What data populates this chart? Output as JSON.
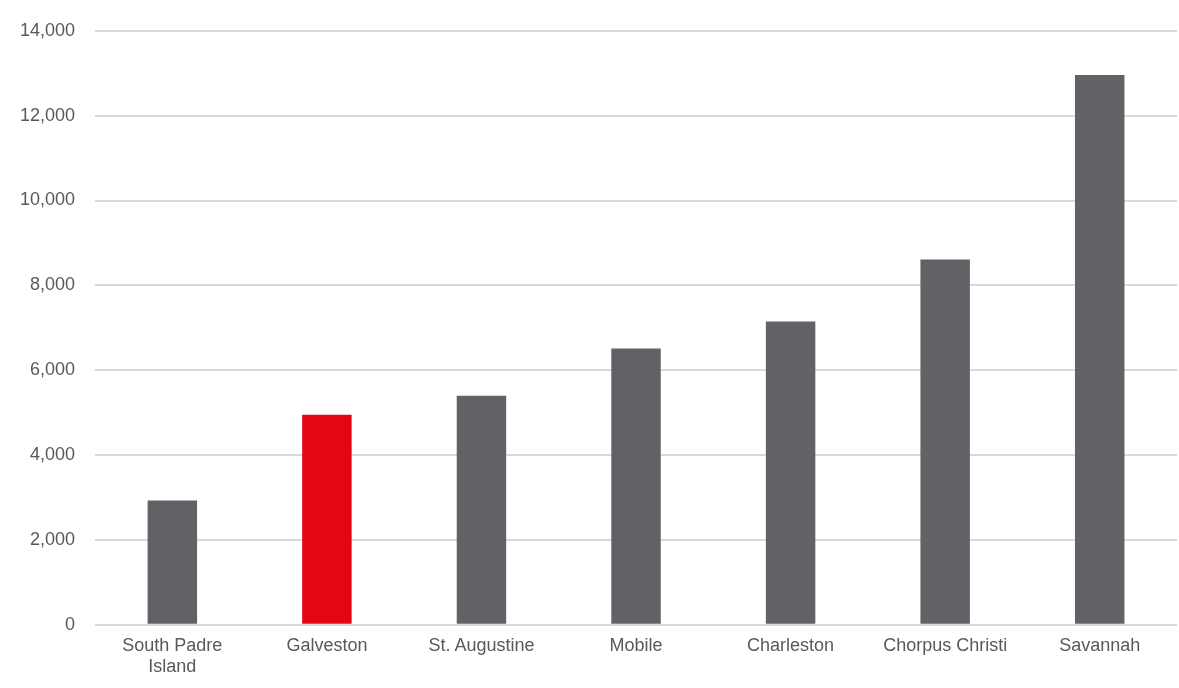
{
  "chart_data": {
    "type": "bar",
    "categories": [
      "South Padre Island",
      "Galveston",
      "St. Augustine",
      "Mobile",
      "Charleston",
      "Chorpus Christi",
      "Savannah"
    ],
    "values": [
      2930,
      4950,
      5400,
      6510,
      7150,
      8610,
      12960
    ],
    "colors": [
      "#616266",
      "#e30613",
      "#616266",
      "#616266",
      "#616266",
      "#616266",
      "#616266"
    ],
    "ylim": [
      0,
      14000
    ],
    "yticks": [
      0,
      {
        "value": 2000,
        "label": "2,000"
      },
      {
        "value": 4000,
        "label": "4,000"
      },
      {
        "value": 6000,
        "label": "6,000"
      },
      {
        "value": 8000,
        "label": "8,000"
      },
      {
        "value": 10000,
        "label": "10,000"
      },
      {
        "value": 12000,
        "label": "12,000"
      },
      {
        "value": 14000,
        "label": "14,000"
      }
    ],
    "grid": "y",
    "legend": false
  }
}
